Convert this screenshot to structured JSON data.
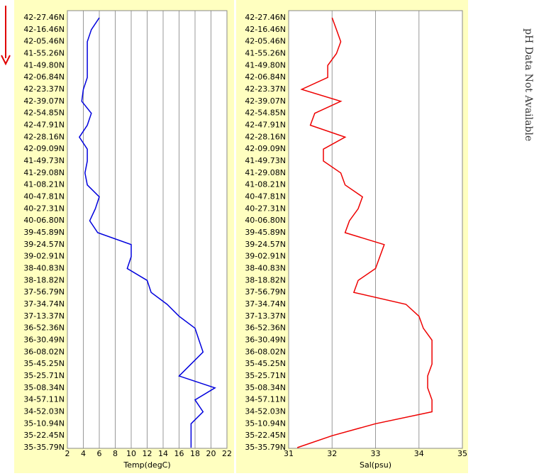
{
  "chart_data": [
    {
      "type": "line",
      "categories": [
        "42-27.46N",
        "42-16.46N",
        "42-05.46N",
        "41-55.26N",
        "41-49.80N",
        "42-06.84N",
        "42-23.37N",
        "42-39.07N",
        "42-54.85N",
        "42-47.91N",
        "42-28.16N",
        "42-09.09N",
        "41-49.73N",
        "41-29.08N",
        "41-08.21N",
        "40-47.81N",
        "40-27.31N",
        "40-06.80N",
        "39-45.89N",
        "39-24.57N",
        "39-02.91N",
        "38-40.83N",
        "38-18.82N",
        "37-56.79N",
        "37-34.74N",
        "37-13.37N",
        "36-52.36N",
        "36-30.49N",
        "36-08.02N",
        "35-45.25N",
        "35-25.71N",
        "35-08.34N",
        "34-57.11N",
        "34-52.03N",
        "35-10.94N",
        "35-22.45N",
        "35-35.79N"
      ],
      "series": [
        {
          "color": "#0000dd",
          "values": [
            6,
            5,
            4.5,
            4.5,
            4.5,
            4.5,
            4,
            3.8,
            5,
            4.5,
            3.5,
            4.5,
            4.5,
            4.2,
            4.5,
            6,
            5.5,
            4.8,
            5.8,
            10,
            10,
            9.5,
            12,
            12.5,
            14.5,
            16,
            18,
            18.5,
            19,
            17.5,
            16,
            20.5,
            18,
            19,
            17.5,
            17.5,
            17.5
          ]
        }
      ],
      "x_label": "Temp(degC)",
      "xlim": [
        2,
        22
      ],
      "xticks": [
        2,
        4,
        6,
        8,
        10,
        12,
        14,
        16,
        18,
        20,
        22
      ],
      "grid": true
    },
    {
      "type": "line",
      "categories": [
        "42-27.46N",
        "42-16.46N",
        "42-05.46N",
        "41-55.26N",
        "41-49.80N",
        "42-06.84N",
        "42-23.37N",
        "42-39.07N",
        "42-54.85N",
        "42-47.91N",
        "42-28.16N",
        "42-09.09N",
        "41-49.73N",
        "41-29.08N",
        "41-08.21N",
        "40-47.81N",
        "40-27.31N",
        "40-06.80N",
        "39-45.89N",
        "39-24.57N",
        "39-02.91N",
        "38-40.83N",
        "38-18.82N",
        "37-56.79N",
        "37-34.74N",
        "37-13.37N",
        "36-52.36N",
        "36-30.49N",
        "36-08.02N",
        "35-45.25N",
        "35-25.71N",
        "35-08.34N",
        "34-57.11N",
        "34-52.03N",
        "35-10.94N",
        "35-22.45N",
        "35-35.79N"
      ],
      "series": [
        {
          "color": "#ee0000",
          "values": [
            32,
            32.1,
            32.2,
            32.1,
            31.9,
            31.9,
            31.3,
            32.2,
            31.6,
            31.5,
            32.3,
            31.8,
            31.8,
            32.2,
            32.3,
            32.7,
            32.6,
            32.4,
            32.3,
            33.2,
            33.1,
            33,
            32.6,
            32.5,
            33.7,
            34,
            34.1,
            34.3,
            34.3,
            34.3,
            34.2,
            34.2,
            34.3,
            34.3,
            33,
            32,
            31.2
          ]
        }
      ],
      "x_label": "Sal(psu)",
      "xlim": [
        31,
        35
      ],
      "xticks": [
        31,
        32,
        33,
        34,
        35
      ],
      "grid": true
    }
  ],
  "side_note": "pH Data Not Available"
}
